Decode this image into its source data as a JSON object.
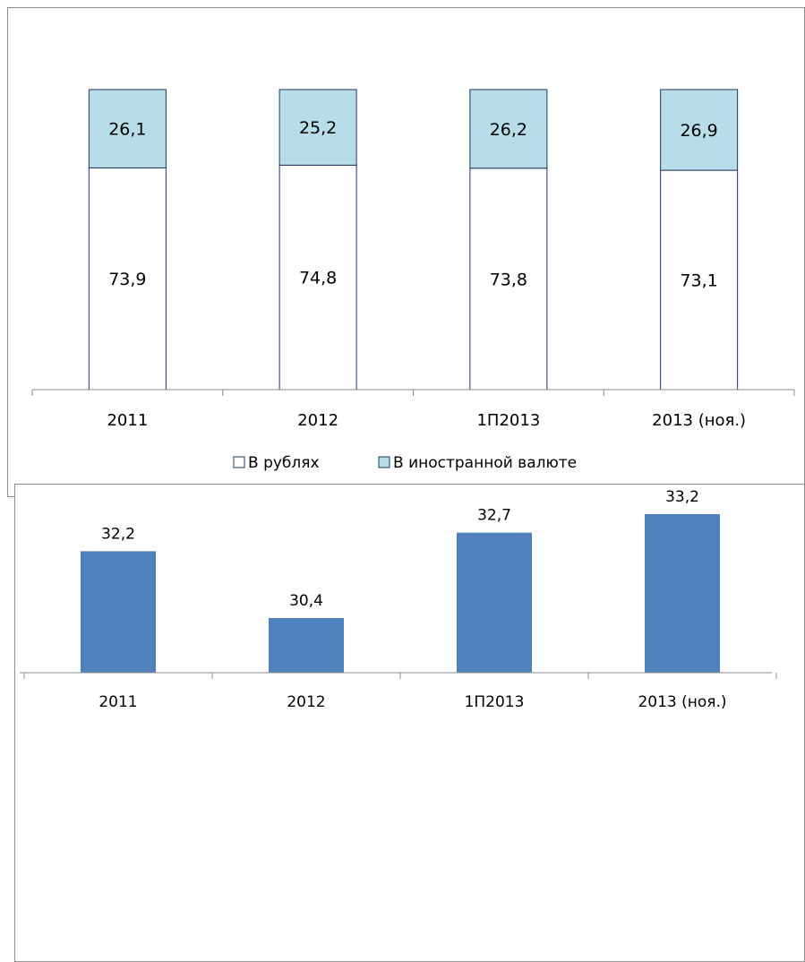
{
  "chart_data": [
    {
      "type": "bar",
      "stacked": true,
      "categories": [
        "2011",
        "2012",
        "1П2013",
        "2013 (ноя.)"
      ],
      "series": [
        {
          "name": "В рублях",
          "values": [
            73.9,
            74.8,
            73.8,
            73.1
          ],
          "labels": [
            "73,9",
            "74,8",
            "73,8",
            "73,1"
          ],
          "color": "#ffffff"
        },
        {
          "name": "В иностранной валюте",
          "values": [
            26.1,
            25.2,
            26.2,
            26.9
          ],
          "labels": [
            "26,1",
            "25,2",
            "26,2",
            "26,9"
          ],
          "color": "#b7dde8"
        }
      ],
      "ylim": [
        0,
        100
      ],
      "grid": false,
      "legend": "bottom",
      "bar_edge_color": "#1f3864"
    },
    {
      "type": "bar",
      "categories": [
        "2011",
        "2012",
        "1П2013",
        "2013 (ноя.)"
      ],
      "values": [
        32.2,
        30.4,
        32.7,
        33.2
      ],
      "labels": [
        "32,2",
        "30,4",
        "32,7",
        "33,2"
      ],
      "color": "#4f81bd",
      "ylim": [
        28.7,
        33.7
      ],
      "grid": false
    }
  ]
}
